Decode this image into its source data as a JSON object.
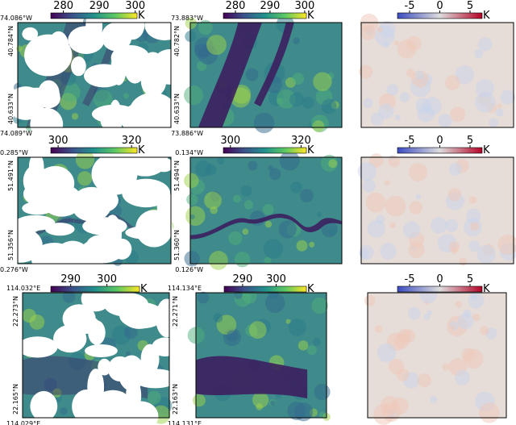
{
  "panels": [
    {
      "coords": {
        "top_left": "74.086°W",
        "top_right": "73.883°W",
        "left_upper": "40.784°N",
        "left_lower": "40.633°N",
        "right_upper": "40.782°N",
        "right_lower": "40.633°N",
        "bottom_left": "74.089°W",
        "bottom_right": "73.886°W"
      },
      "colorbars": [
        {
          "lim": [
            276.5,
            300.5
          ],
          "ticks": [
            280,
            290,
            300
          ],
          "unit": "K",
          "cmap": "viridis"
        },
        {
          "lim": [
            276.5,
            300.5
          ],
          "ticks": [
            280,
            290,
            300
          ],
          "unit": "K",
          "cmap": "viridis"
        },
        {
          "lim": [
            -7,
            7
          ],
          "ticks": [
            -5,
            0,
            5
          ],
          "unit": "K",
          "cmap": "coolwarm"
        }
      ]
    },
    {
      "coords": {
        "top_left": "0.285°W",
        "top_right": "0.134°W",
        "left_upper": "51.491°N",
        "left_lower": "51.356°N",
        "right_upper": "51.494°N",
        "right_lower": "51.360°N",
        "bottom_left": "0.276°W",
        "bottom_right": "0.126°W"
      },
      "colorbars": [
        {
          "lim": [
            298,
            321.5
          ],
          "ticks": [
            300,
            320
          ],
          "unit": "K",
          "cmap": "viridis"
        },
        {
          "lim": [
            298,
            321.5
          ],
          "ticks": [
            300,
            320
          ],
          "unit": "K",
          "cmap": "viridis"
        },
        {
          "lim": [
            -7,
            7
          ],
          "ticks": [
            -5,
            0,
            5
          ],
          "unit": "K",
          "cmap": "coolwarm"
        }
      ]
    },
    {
      "coords": {
        "top_left": "114.032°E",
        "top_right": "114.134°E",
        "left_upper": "22.273°N",
        "left_lower": "22.165°N",
        "right_upper": "22.271°N",
        "right_lower": "22.163°N",
        "bottom_left": "114.029°E",
        "bottom_right": "114.131°E"
      },
      "colorbars": [
        {
          "lim": [
            284.5,
            309
          ],
          "ticks": [
            290,
            300
          ],
          "unit": "K",
          "cmap": "viridis"
        },
        {
          "lim": [
            284.5,
            309
          ],
          "ticks": [
            290,
            300
          ],
          "unit": "K",
          "cmap": "viridis"
        },
        {
          "lim": [
            -7,
            7
          ],
          "ticks": [
            -5,
            0,
            5
          ],
          "unit": "K",
          "cmap": "coolwarm"
        }
      ]
    }
  ]
}
